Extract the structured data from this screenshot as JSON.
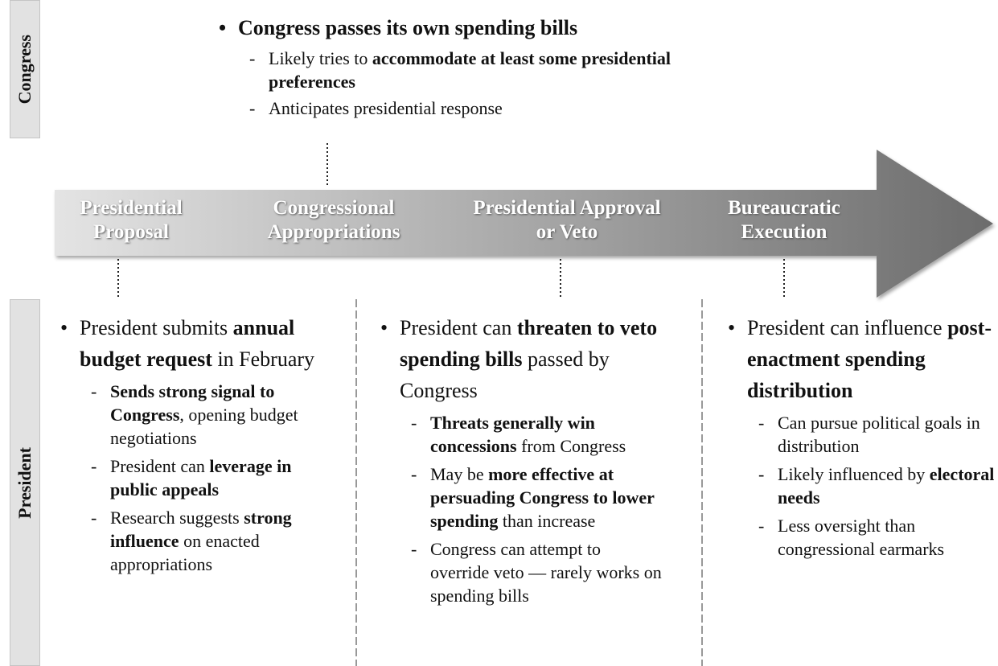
{
  "side_labels": {
    "congress": "Congress",
    "president": "President"
  },
  "congress_note": {
    "bullet": [
      {
        "text": "Congress passes its own spending bills",
        "bold": true
      }
    ],
    "subs": [
      [
        {
          "text": "Likely tries to",
          "bold": false
        },
        {
          "text": "accommodate at least some presidential preferences",
          "bold": true
        }
      ],
      [
        {
          "text": "Anticipates presidential response",
          "bold": false
        }
      ]
    ]
  },
  "stages": [
    "Presidential Proposal",
    "Congressional Appropriations",
    "Presidential Approval or Veto",
    "Bureaucratic Execution"
  ],
  "president_columns": [
    {
      "bullet": [
        {
          "text": "President submits",
          "bold": false
        },
        {
          "text": "annual budget request",
          "bold": true
        },
        {
          "text": "in February",
          "bold": false
        }
      ],
      "subs": [
        [
          {
            "text": "Sends strong signal to Congress",
            "bold": true
          },
          {
            "text": ", opening budget negotiations",
            "bold": false
          }
        ],
        [
          {
            "text": "President can",
            "bold": false
          },
          {
            "text": "leverage in public appeals",
            "bold": true
          }
        ],
        [
          {
            "text": "Research suggests",
            "bold": false
          },
          {
            "text": "strong influence",
            "bold": true
          },
          {
            "text": "on enacted appropriations",
            "bold": false
          }
        ]
      ]
    },
    {
      "bullet": [
        {
          "text": "President can",
          "bold": false
        },
        {
          "text": "threaten to veto spending bills",
          "bold": true
        },
        {
          "text": "passed by Congress",
          "bold": false
        }
      ],
      "subs": [
        [
          {
            "text": "Threats generally win concessions",
            "bold": true
          },
          {
            "text": "from Congress",
            "bold": false
          }
        ],
        [
          {
            "text": "May be",
            "bold": false
          },
          {
            "text": "more effective at persuading Congress to lower spending",
            "bold": true
          },
          {
            "text": "than increase",
            "bold": false
          }
        ],
        [
          {
            "text": "Congress can attempt to override veto — rarely works on spending bills",
            "bold": false
          }
        ]
      ]
    },
    {
      "bullet": [
        {
          "text": "President can influence",
          "bold": false
        },
        {
          "text": "post-enactment spending distribution",
          "bold": true
        }
      ],
      "subs": [
        [
          {
            "text": "Can pursue political goals in distribution",
            "bold": false
          }
        ],
        [
          {
            "text": "Likely influenced by",
            "bold": false
          },
          {
            "text": "electoral needs",
            "bold": true
          }
        ],
        [
          {
            "text": "Less oversight than congressional earmarks",
            "bold": false
          }
        ]
      ]
    }
  ]
}
